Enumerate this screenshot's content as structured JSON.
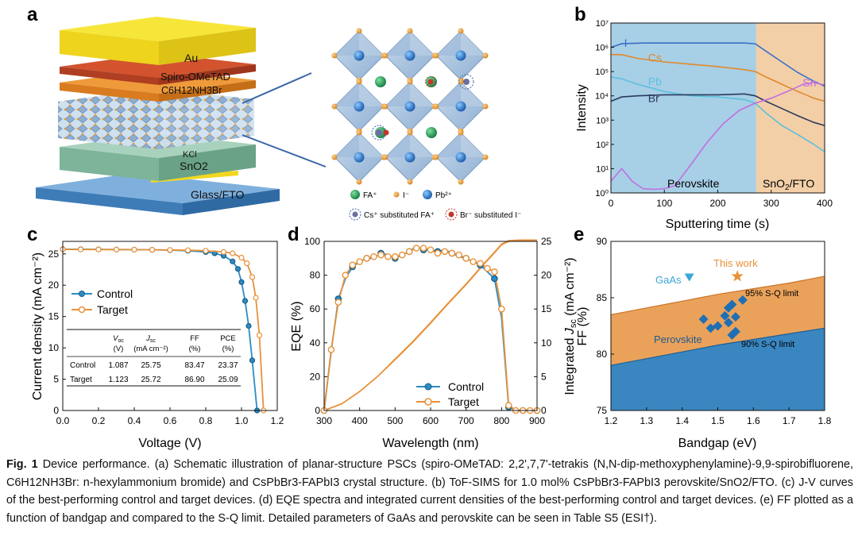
{
  "panels": {
    "a": {
      "label": "a",
      "layers": [
        "Au",
        "Spiro-OMeTAD",
        "C6H12NH3Br",
        "KCl",
        "SnO2",
        "Glass/FTO"
      ],
      "legend": [
        "FA⁺",
        "I⁻",
        "Pb²⁺",
        "Cs⁺ substituted FA⁺",
        "Br⁻ substituted I⁻"
      ]
    },
    "b": {
      "label": "b"
    },
    "c": {
      "label": "c"
    },
    "d": {
      "label": "d"
    },
    "e": {
      "label": "e"
    }
  },
  "colors": {
    "control": "#2b8cc4",
    "target": "#e8913a",
    "au": "#f2dd1c",
    "spiro": "#c9452a",
    "glass": "#5b9bd5",
    "sno2": "#7fb79f",
    "tof_perovskite_bg": "#a7cfe6",
    "tof_sno2_bg": "#f3cfa8",
    "limit_fill": "#eaa25a",
    "base_fill": "#3a86c0"
  },
  "chart_data": [
    {
      "id": "b",
      "type": "line",
      "xlabel": "Sputtering time (s)",
      "ylabel": "Intensity",
      "yscale": "log",
      "xlim": [
        0,
        400
      ],
      "ylim": [
        1,
        10000000
      ],
      "xticks": [
        "0",
        "100",
        "200",
        "300",
        "400"
      ],
      "yticks": [
        "10⁰",
        "10¹",
        "10²",
        "10³",
        "10⁴",
        "10⁵",
        "10⁶",
        "10⁷"
      ],
      "regions": [
        {
          "name": "Perovskite",
          "from": 0,
          "to": 272
        },
        {
          "name": "SnO2/FTO",
          "from": 272,
          "to": 400
        }
      ],
      "series": [
        {
          "name": "I",
          "color": "#3a6fc4",
          "x": [
            0,
            20,
            60,
            100,
            150,
            200,
            250,
            270,
            290,
            320,
            350,
            380,
            400
          ],
          "y": [
            1000000,
            1400000,
            1500000,
            1500000,
            1500000,
            1500000,
            1500000,
            1400000,
            700000,
            250000,
            90000,
            40000,
            25000
          ]
        },
        {
          "name": "Cs",
          "color": "#e08a2a",
          "x": [
            0,
            20,
            50,
            100,
            150,
            200,
            250,
            270,
            290,
            320,
            350,
            380,
            400
          ],
          "y": [
            500000,
            500000,
            350000,
            250000,
            200000,
            160000,
            120000,
            100000,
            60000,
            30000,
            15000,
            8000,
            6000
          ]
        },
        {
          "name": "Pb",
          "color": "#5bc0de",
          "x": [
            0,
            20,
            50,
            100,
            150,
            200,
            250,
            270,
            290,
            320,
            350,
            380,
            400
          ],
          "y": [
            60000,
            50000,
            30000,
            15000,
            10000,
            9000,
            7000,
            5000,
            2000,
            600,
            250,
            100,
            50
          ]
        },
        {
          "name": "Br",
          "color": "#2b3a5c",
          "x": [
            0,
            20,
            50,
            100,
            150,
            200,
            250,
            270,
            290,
            320,
            350,
            380,
            400
          ],
          "y": [
            6000,
            9000,
            10000,
            11000,
            11000,
            11000,
            12000,
            10000,
            6000,
            3000,
            1500,
            800,
            600
          ]
        },
        {
          "name": "Sn",
          "color": "#c070e0",
          "x": [
            0,
            20,
            40,
            60,
            80,
            100,
            120,
            150,
            180,
            210,
            240,
            270,
            300,
            330,
            360,
            380,
            400
          ],
          "y": [
            3,
            10,
            3,
            1.5,
            1.4,
            1.5,
            2,
            15,
            120,
            700,
            2500,
            5000,
            8000,
            15000,
            30000,
            35000,
            28000
          ]
        }
      ]
    },
    {
      "id": "c",
      "type": "line",
      "xlabel": "Voltage (V)",
      "ylabel": "Current density (mA cm⁻²)",
      "xlim": [
        0,
        1.2
      ],
      "ylim": [
        0,
        27
      ],
      "xticks": [
        "0.0",
        "0.2",
        "0.4",
        "0.6",
        "0.8",
        "1.0",
        "1.2"
      ],
      "yticks": [
        "0",
        "5",
        "10",
        "15",
        "20",
        "25"
      ],
      "legend": [
        "Control",
        "Target"
      ],
      "series": [
        {
          "name": "Control",
          "color": "#2b8cc4",
          "x": [
            0,
            0.1,
            0.2,
            0.3,
            0.4,
            0.5,
            0.6,
            0.7,
            0.8,
            0.85,
            0.9,
            0.95,
            0.98,
            1.0,
            1.02,
            1.04,
            1.06,
            1.087
          ],
          "y": [
            25.75,
            25.74,
            25.72,
            25.7,
            25.68,
            25.65,
            25.6,
            25.5,
            25.3,
            25.1,
            24.7,
            23.8,
            22.6,
            20.5,
            17.5,
            13.5,
            8.0,
            0
          ]
        },
        {
          "name": "Target",
          "color": "#e8913a",
          "x": [
            0,
            0.1,
            0.2,
            0.3,
            0.4,
            0.5,
            0.6,
            0.7,
            0.8,
            0.9,
            0.95,
            1.0,
            1.03,
            1.06,
            1.08,
            1.1,
            1.123
          ],
          "y": [
            25.72,
            25.71,
            25.7,
            25.69,
            25.68,
            25.66,
            25.63,
            25.58,
            25.5,
            25.3,
            25.1,
            24.4,
            23.5,
            21.3,
            18.0,
            12.0,
            0
          ]
        }
      ],
      "table": {
        "headers": [
          [
            "V",
            "oc",
            "(V)"
          ],
          [
            "J",
            "sc",
            "(mA cm⁻²)"
          ],
          [
            "FF",
            "",
            "(%)"
          ],
          [
            "PCE",
            "",
            "(%)"
          ]
        ],
        "rows": [
          [
            "Control",
            "1.087",
            "25.75",
            "83.47",
            "23.37"
          ],
          [
            "Target",
            "1.123",
            "25.72",
            "86.90",
            "25.09"
          ]
        ]
      }
    },
    {
      "id": "d",
      "type": "line",
      "xlabel": "Wavelength (nm)",
      "ylabel": "EQE (%)",
      "y2label": "Integrated J_sc (mA cm⁻²)",
      "xlim": [
        300,
        900
      ],
      "ylim": [
        0,
        100
      ],
      "y2lim": [
        0,
        25
      ],
      "xticks": [
        "300",
        "400",
        "500",
        "600",
        "700",
        "800",
        "900"
      ],
      "yticks": [
        "0",
        "20",
        "40",
        "60",
        "80",
        "100"
      ],
      "y2ticks": [
        "0",
        "5",
        "10",
        "15",
        "20",
        "25"
      ],
      "legend": [
        "Control",
        "Target"
      ],
      "series": [
        {
          "name": "Control",
          "axis": "left",
          "color": "#2b8cc4",
          "x": [
            300,
            320,
            340,
            360,
            380,
            400,
            420,
            440,
            460,
            480,
            500,
            520,
            540,
            560,
            580,
            600,
            620,
            640,
            660,
            680,
            700,
            720,
            740,
            760,
            780,
            800,
            820,
            840,
            860,
            880,
            900
          ],
          "y": [
            0,
            35,
            66,
            78,
            85,
            88,
            90,
            90,
            93,
            92,
            90,
            92,
            94,
            97,
            95,
            95,
            94,
            95,
            93,
            91,
            90,
            88,
            86,
            82,
            78,
            55,
            2,
            0,
            0,
            0,
            0
          ]
        },
        {
          "name": "Target",
          "axis": "left",
          "color": "#e8913a",
          "x": [
            300,
            320,
            340,
            360,
            380,
            400,
            420,
            440,
            460,
            480,
            500,
            520,
            540,
            560,
            580,
            600,
            620,
            640,
            660,
            680,
            700,
            720,
            740,
            760,
            780,
            800,
            820,
            840,
            860,
            880,
            900
          ],
          "y": [
            0,
            36,
            64,
            80,
            86,
            88,
            90,
            91,
            92,
            91,
            91,
            92,
            94,
            96,
            96,
            95,
            93,
            94,
            93,
            92,
            90,
            88,
            87,
            84,
            82,
            60,
            3,
            0,
            0,
            0,
            0
          ]
        },
        {
          "name": "Control Jsc",
          "axis": "right",
          "color": "#e8913a",
          "x": [
            300,
            350,
            400,
            450,
            500,
            550,
            600,
            650,
            700,
            750,
            780,
            800,
            820,
            850,
            900
          ],
          "y": [
            0,
            1.0,
            2.8,
            5.0,
            7.6,
            10.2,
            13.0,
            15.9,
            18.7,
            21.7,
            23.4,
            24.6,
            25.1,
            25.2,
            25.2
          ]
        },
        {
          "name": "Target Jsc",
          "axis": "right",
          "color": "#e8913a",
          "x": [
            300,
            350,
            400,
            450,
            500,
            550,
            600,
            650,
            700,
            750,
            780,
            800,
            820,
            850,
            900
          ],
          "y": [
            0,
            1.0,
            2.8,
            5.0,
            7.5,
            10.1,
            12.9,
            15.8,
            18.6,
            21.6,
            23.3,
            24.5,
            25.0,
            25.1,
            25.1
          ]
        }
      ]
    },
    {
      "id": "e",
      "type": "scatter",
      "xlabel": "Bandgap (eV)",
      "ylabel": "FF (%)",
      "xlim": [
        1.2,
        1.8
      ],
      "ylim": [
        75,
        90
      ],
      "xticks": [
        "1.2",
        "1.3",
        "1.4",
        "1.5",
        "1.6",
        "1.7",
        "1.8"
      ],
      "yticks": [
        "75",
        "80",
        "85",
        "90"
      ],
      "limits": [
        {
          "name": "95% S-Q limit",
          "x": [
            1.2,
            1.3,
            1.4,
            1.5,
            1.6,
            1.7,
            1.8
          ],
          "y": [
            83.5,
            84.1,
            84.7,
            85.3,
            85.8,
            86.3,
            86.9
          ]
        },
        {
          "name": "90% S-Q limit",
          "x": [
            1.2,
            1.3,
            1.4,
            1.5,
            1.6,
            1.7,
            1.8
          ],
          "y": [
            79.0,
            79.6,
            80.2,
            80.8,
            81.3,
            81.8,
            82.3
          ]
        }
      ],
      "points": [
        {
          "name": "Perovskite",
          "marker": "diamond",
          "color": "#1f6fb4",
          "x": [
            1.46,
            1.48,
            1.5,
            1.52,
            1.53,
            1.53,
            1.54,
            1.55,
            1.55,
            1.57,
            1.54
          ],
          "y": [
            83.1,
            82.3,
            82.5,
            83.4,
            84.1,
            82.8,
            84.4,
            83.3,
            82.0,
            84.8,
            81.7
          ]
        },
        {
          "name": "GaAs",
          "marker": "triangle",
          "color": "#3aa7d8",
          "x": [
            1.42
          ],
          "y": [
            86.8
          ]
        },
        {
          "name": "This work",
          "marker": "star",
          "color": "#e8913a",
          "x": [
            1.555
          ],
          "y": [
            86.9
          ]
        }
      ]
    }
  ],
  "caption": {
    "fig": "Fig. 1",
    "text": "Device performance. (a) Schematic illustration of planar-structure PSCs (spiro-OMeTAD: 2,2',7,7'-tetrakis (N,N-dip-methoxyphenylamine)-9,9-spirobifluorene, C6H12NH3Br: n-hexylammonium bromide) and CsPbBr3-FAPbI3 crystal structure. (b) ToF-SIMS for 1.0 mol% CsPbBr3-FAPbI3 perovskite/SnO2/FTO. (c) J-V curves of the best-performing control and target devices. (d) EQE spectra and integrated current densities of the best-performing control and target devices. (e) FF plotted as a function of bandgap and compared to the S-Q limit. Detailed parameters of GaAs and perovskite can be seen in Table S5 (ESI†)."
  }
}
